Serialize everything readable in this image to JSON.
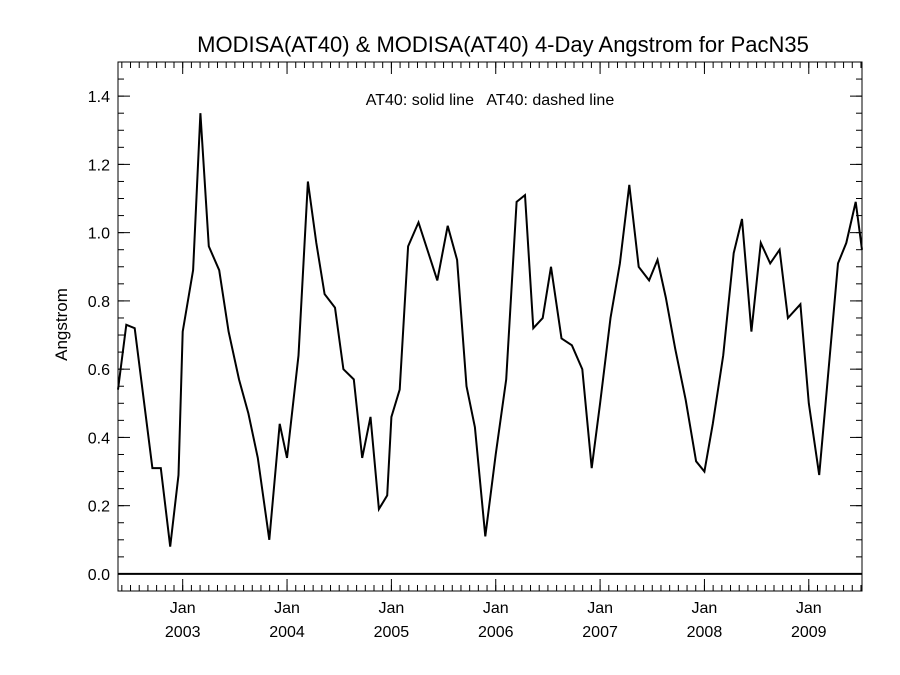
{
  "chart_data": {
    "type": "line",
    "title": "MODISA(AT40) & MODISA(AT40) 4-Day Angstrom for PacN35",
    "ylabel": "Angstrom",
    "xlabel": "",
    "annotation": "AT40: solid line   AT40: dashed line",
    "ylim": [
      -0.05,
      1.5
    ],
    "xlim": [
      2002.38,
      2009.51
    ],
    "yticks": [
      {
        "v": 0.0,
        "label": "0.0"
      },
      {
        "v": 0.2,
        "label": "0.2"
      },
      {
        "v": 0.4,
        "label": "0.4"
      },
      {
        "v": 0.6,
        "label": "0.6"
      },
      {
        "v": 0.8,
        "label": "0.8"
      },
      {
        "v": 1.0,
        "label": "1.0"
      },
      {
        "v": 1.2,
        "label": "1.2"
      },
      {
        "v": 1.4,
        "label": "1.4"
      }
    ],
    "xticks": [
      {
        "v": 2003.0,
        "month": "Jan",
        "year": "2003"
      },
      {
        "v": 2004.0,
        "month": "Jan",
        "year": "2004"
      },
      {
        "v": 2005.0,
        "month": "Jan",
        "year": "2005"
      },
      {
        "v": 2006.0,
        "month": "Jan",
        "year": "2006"
      },
      {
        "v": 2007.0,
        "month": "Jan",
        "year": "2007"
      },
      {
        "v": 2008.0,
        "month": "Jan",
        "year": "2008"
      },
      {
        "v": 2009.0,
        "month": "Jan",
        "year": "2009"
      }
    ],
    "reference_line": 0.0,
    "series": [
      {
        "style": "solid",
        "x": [
          2002.38,
          2002.46,
          2002.54,
          2002.71,
          2002.79,
          2002.88,
          2002.96,
          2003.0,
          2003.1,
          2003.17,
          2003.25,
          2003.35,
          2003.44,
          2003.54,
          2003.63,
          2003.72,
          2003.83,
          2003.93,
          2004.0,
          2004.11,
          2004.2,
          2004.28,
          2004.36,
          2004.46,
          2004.54,
          2004.64,
          2004.72,
          2004.8,
          2004.88,
          2004.96,
          2005.0,
          2005.08,
          2005.16,
          2005.26,
          2005.44,
          2005.54,
          2005.63,
          2005.72,
          2005.8,
          2005.9,
          2006.0,
          2006.1,
          2006.2,
          2006.28,
          2006.36,
          2006.45,
          2006.53,
          2006.63,
          2006.73,
          2006.83,
          2006.92,
          2007.0,
          2007.1,
          2007.19,
          2007.28,
          2007.37,
          2007.47,
          2007.55,
          2007.63,
          2007.72,
          2007.82,
          2007.92,
          2008.0,
          2008.08,
          2008.18,
          2008.28,
          2008.36,
          2008.45,
          2008.54,
          2008.63,
          2008.72,
          2008.8,
          2008.92,
          2009.0,
          2009.1,
          2009.19,
          2009.28,
          2009.36,
          2009.45,
          2009.51
        ],
        "y": [
          0.54,
          0.73,
          0.72,
          0.31,
          0.31,
          0.08,
          0.29,
          0.71,
          0.89,
          1.35,
          0.96,
          0.89,
          0.71,
          0.57,
          0.47,
          0.34,
          0.1,
          0.44,
          0.34,
          0.64,
          1.15,
          0.97,
          0.82,
          0.78,
          0.6,
          0.57,
          0.34,
          0.46,
          0.19,
          0.23,
          0.46,
          0.54,
          0.96,
          1.03,
          0.86,
          1.02,
          0.92,
          0.55,
          0.43,
          0.11,
          0.35,
          0.57,
          1.09,
          1.11,
          0.72,
          0.75,
          0.9,
          0.69,
          0.67,
          0.6,
          0.31,
          0.5,
          0.75,
          0.91,
          1.14,
          0.9,
          0.86,
          0.92,
          0.81,
          0.66,
          0.51,
          0.33,
          0.3,
          0.44,
          0.64,
          0.94,
          1.04,
          0.71,
          0.97,
          0.91,
          0.95,
          0.75,
          0.79,
          0.5,
          0.29,
          0.6,
          0.91,
          0.97,
          1.09,
          0.95
        ]
      }
    ]
  }
}
